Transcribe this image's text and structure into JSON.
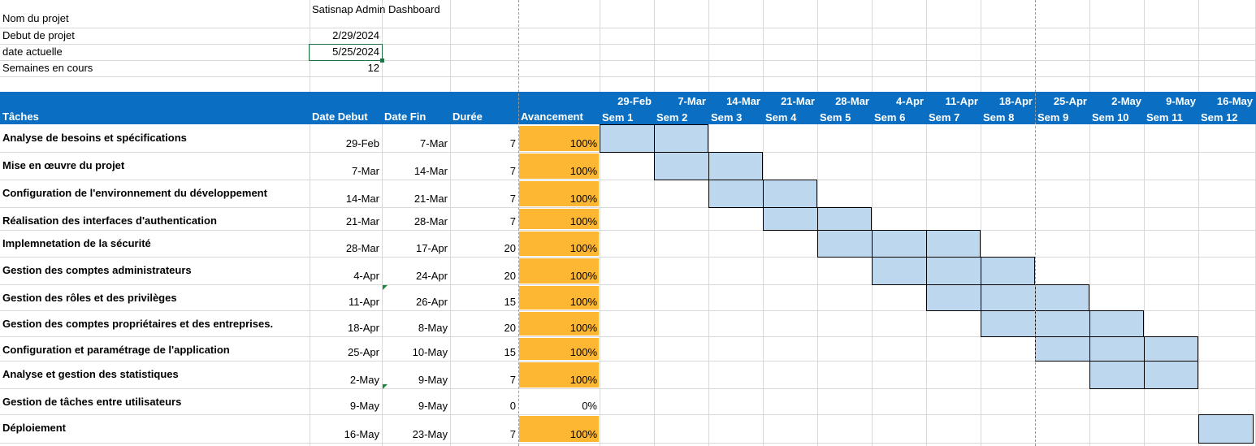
{
  "info": {
    "project_name_label": "Nom du projet",
    "project_name_value": "Satisnap Admin Dashboard",
    "start_label": "Debut de projet",
    "start_value": "2/29/2024",
    "current_label": "date actuelle",
    "current_value": "5/25/2024",
    "weeks_label": "Semaines en cours",
    "weeks_value": "12"
  },
  "header": {
    "task": "Tâches",
    "start": "Date Debut",
    "end": "Date Fin",
    "duration": "Durée",
    "progress": "Avancement"
  },
  "weeks": [
    {
      "date": "29-Feb",
      "label": "Sem 1"
    },
    {
      "date": "7-Mar",
      "label": "Sem 2"
    },
    {
      "date": "14-Mar",
      "label": "Sem 3"
    },
    {
      "date": "21-Mar",
      "label": "Sem 4"
    },
    {
      "date": "28-Mar",
      "label": "Sem 5"
    },
    {
      "date": "4-Apr",
      "label": "Sem 6"
    },
    {
      "date": "11-Apr",
      "label": "Sem 7"
    },
    {
      "date": "18-Apr",
      "label": "Sem 8"
    },
    {
      "date": "25-Apr",
      "label": "Sem 9"
    },
    {
      "date": "2-May",
      "label": "Sem 10"
    },
    {
      "date": "9-May",
      "label": "Sem 11"
    },
    {
      "date": "16-May",
      "label": "Sem 12"
    }
  ],
  "tasks": [
    {
      "name": "Analyse de besoins et spécifications",
      "start": "29-Feb",
      "end": "7-Mar",
      "duration": "7",
      "progress": "100%",
      "progress_value": 1,
      "first_week": 1,
      "last_week": 2
    },
    {
      "name": "Mise en œuvre du projet",
      "start": "7-Mar",
      "end": "14-Mar",
      "duration": "7",
      "progress": "100%",
      "progress_value": 1,
      "first_week": 2,
      "last_week": 3
    },
    {
      "name": "Configuration de l'environnement du développement",
      "start": "14-Mar",
      "end": "21-Mar",
      "duration": "7",
      "progress": "100%",
      "progress_value": 1,
      "first_week": 3,
      "last_week": 4
    },
    {
      "name": "Réalisation des interfaces d'authentication",
      "start": "21-Mar",
      "end": "28-Mar",
      "duration": "7",
      "progress": "100%",
      "progress_value": 1,
      "first_week": 4,
      "last_week": 5
    },
    {
      "name": "Implemnetation de la sécurité",
      "start": "28-Mar",
      "end": "17-Apr",
      "duration": "20",
      "progress": "100%",
      "progress_value": 1,
      "first_week": 5,
      "last_week": 7
    },
    {
      "name": "Gestion des comptes administrateurs",
      "start": "4-Apr",
      "end": "24-Apr",
      "duration": "20",
      "progress": "100%",
      "progress_value": 1,
      "first_week": 6,
      "last_week": 8
    },
    {
      "name": "Gestion des rôles et des privilèges",
      "start": "11-Apr",
      "end": "26-Apr",
      "duration": "15",
      "progress": "100%",
      "progress_value": 1,
      "first_week": 7,
      "last_week": 9
    },
    {
      "name": "Gestion des comptes propriétaires et des entreprises.",
      "start": "18-Apr",
      "end": "8-May",
      "duration": "20",
      "progress": "100%",
      "progress_value": 1,
      "first_week": 8,
      "last_week": 10
    },
    {
      "name": "Configuration et paramétrage de l'application",
      "start": "25-Apr",
      "end": "10-May",
      "duration": "15",
      "progress": "100%",
      "progress_value": 1,
      "first_week": 9,
      "last_week": 11
    },
    {
      "name": "Analyse et gestion des statistiques",
      "start": "2-May",
      "end": "9-May",
      "duration": "7",
      "progress": "100%",
      "progress_value": 1,
      "first_week": 10,
      "last_week": 11
    },
    {
      "name": "Gestion de tâches entre utilisateurs",
      "start": "9-May",
      "end": "9-May",
      "duration": "0",
      "progress": "0%",
      "progress_value": 0,
      "first_week": 0,
      "last_week": 0
    },
    {
      "name": "Déploiement",
      "start": "16-May",
      "end": "23-May",
      "duration": "7",
      "progress": "100%",
      "progress_value": 1,
      "first_week": 12,
      "last_week": 12
    }
  ],
  "colors": {
    "header_band": "#0a6fc2",
    "progress_fill": "#fdb733",
    "gantt_fill": "#bdd7ee",
    "selection": "#217346"
  }
}
